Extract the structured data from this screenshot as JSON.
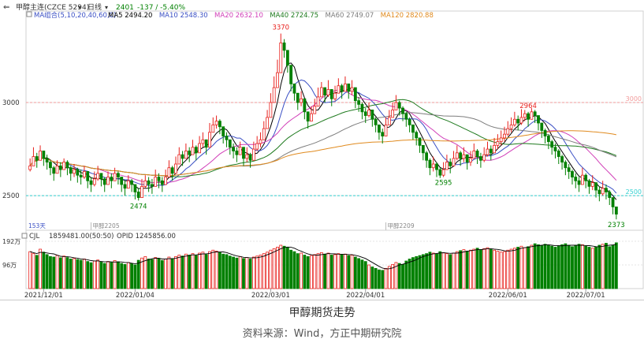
{
  "toolbar": {
    "symbol": "甲醇主连(CZCE 5294)",
    "period": "日线",
    "last": "2401",
    "change": "-137 / -5.40%",
    "icons": [
      "back-arrow-icon",
      "dropdown-icon",
      "period-dropdown-icon"
    ]
  },
  "ma_legend": {
    "group": "MA组合(5,10,20,40,60,0)",
    "items": [
      {
        "label": "MA5 2494.20",
        "color": "#000000"
      },
      {
        "label": "MA10 2548.30",
        "color": "#3a4fc4"
      },
      {
        "label": "MA20 2632.10",
        "color": "#d13fb8"
      },
      {
        "label": "MA40 2724.75",
        "color": "#1e7a1e"
      },
      {
        "label": "MA60 2749.07",
        "color": "#7d7d7d"
      },
      {
        "label": "MA120 2820.88",
        "color": "#e08a1e"
      }
    ]
  },
  "volume_legend": {
    "name": "CJL",
    "values": "1859481.00(50:50)",
    "opid": "OPID 1245856.00"
  },
  "colors": {
    "up": "#e8201c",
    "down": "#008000",
    "ref_red": "#f29b9b",
    "ref_cyan": "#33d0d0",
    "grid": "#e6e6e6"
  },
  "caption": {
    "title": "甲醇期货走势",
    "source": "资料来源：Wind，方正中期研究院"
  },
  "chart_data": {
    "type": "candlestick",
    "title": "甲醇期货走势",
    "price_axis": {
      "ylim": [
        2340,
        3440
      ],
      "ticks": [
        {
          "value": 2500,
          "label": "2500"
        },
        {
          "value": 3000,
          "label": "3000"
        }
      ]
    },
    "ref_lines": [
      {
        "value": 3000,
        "label": "3000",
        "color": "#f29b9b"
      },
      {
        "value": 2500,
        "label": "2500",
        "color": "#33d0d0"
      }
    ],
    "annotations": [
      {
        "label": "3370",
        "index": 74,
        "kind": "high",
        "color": "#e8201c"
      },
      {
        "label": "2474",
        "index": 32,
        "kind": "low",
        "color": "#008000"
      },
      {
        "label": "2595",
        "index": 122,
        "kind": "low",
        "color": "#008000"
      },
      {
        "label": "2964",
        "index": 147,
        "kind": "high",
        "color": "#e8201c"
      },
      {
        "label": "2373",
        "index": 173,
        "kind": "low",
        "color": "#008000"
      }
    ],
    "contract_marks": [
      {
        "label": "153天",
        "index": 0
      },
      {
        "label": "甲醇2205",
        "index": 18
      },
      {
        "label": "甲醇2209",
        "index": 105
      }
    ],
    "date_labels": [
      {
        "label": "2021/12/01",
        "index": 4
      },
      {
        "label": "2022/01/04",
        "index": 31
      },
      {
        "label": "2022/03/01",
        "index": 71
      },
      {
        "label": "2022/04/01",
        "index": 99
      },
      {
        "label": "2022/06/01",
        "index": 141
      },
      {
        "label": "2022/07/01",
        "index": 164
      }
    ],
    "volume_axis": {
      "ylim": [
        0,
        1920000
      ],
      "ticks": [
        {
          "value": 1920000,
          "label": "192万"
        },
        {
          "value": 960000,
          "label": "96万"
        }
      ]
    },
    "closes": [
      2660,
      2710,
      2690,
      2740,
      2700,
      2680,
      2650,
      2620,
      2660,
      2640,
      2680,
      2650,
      2620,
      2640,
      2610,
      2600,
      2630,
      2580,
      2560,
      2590,
      2620,
      2590,
      2560,
      2600,
      2580,
      2620,
      2600,
      2560,
      2540,
      2580,
      2560,
      2520,
      2490,
      2550,
      2580,
      2560,
      2550,
      2600,
      2580,
      2560,
      2600,
      2650,
      2620,
      2670,
      2720,
      2700,
      2740,
      2720,
      2760,
      2730,
      2780,
      2800,
      2760,
      2840,
      2880,
      2900,
      2870,
      2820,
      2800,
      2760,
      2740,
      2720,
      2760,
      2700,
      2720,
      2690,
      2750,
      2780,
      2800,
      2860,
      2920,
      3000,
      3080,
      3160,
      3320,
      3280,
      3200,
      3100,
      3050,
      3000,
      3020,
      2950,
      2900,
      2940,
      2980,
      3030,
      3080,
      3040,
      3070,
      3020,
      3050,
      3090,
      3060,
      3100,
      3060,
      3080,
      3010,
      2990,
      2950,
      2930,
      2960,
      2910,
      2880,
      2840,
      2820,
      2880,
      2920,
      2960,
      3000,
      2970,
      2940,
      2910,
      2880,
      2840,
      2810,
      2770,
      2730,
      2690,
      2650,
      2670,
      2640,
      2610,
      2640,
      2680,
      2660,
      2700,
      2730,
      2700,
      2720,
      2680,
      2700,
      2740,
      2710,
      2690,
      2720,
      2750,
      2730,
      2770,
      2790,
      2810,
      2830,
      2860,
      2880,
      2910,
      2890,
      2920,
      2940,
      2910,
      2950,
      2930,
      2890,
      2850,
      2820,
      2790,
      2760,
      2740,
      2710,
      2680,
      2650,
      2630,
      2600,
      2580,
      2560,
      2610,
      2580,
      2550,
      2570,
      2530,
      2510,
      2540,
      2520,
      2490,
      2440,
      2401
    ],
    "highs": [
      2700,
      2760,
      2730,
      2770,
      2740,
      2720,
      2690,
      2660,
      2690,
      2680,
      2700,
      2690,
      2660,
      2670,
      2650,
      2640,
      2660,
      2620,
      2600,
      2630,
      2660,
      2620,
      2600,
      2630,
      2620,
      2650,
      2630,
      2600,
      2580,
      2610,
      2590,
      2560,
      2540,
      2590,
      2610,
      2600,
      2590,
      2640,
      2620,
      2600,
      2640,
      2690,
      2660,
      2710,
      2760,
      2740,
      2780,
      2760,
      2800,
      2770,
      2820,
      2840,
      2800,
      2890,
      2920,
      2930,
      2910,
      2860,
      2840,
      2800,
      2780,
      2760,
      2790,
      2740,
      2760,
      2730,
      2790,
      2820,
      2840,
      2900,
      2960,
      3050,
      3140,
      3230,
      3370,
      3340,
      3270,
      3150,
      3100,
      3050,
      3060,
      3000,
      2950,
      2980,
      3020,
      3080,
      3110,
      3080,
      3120,
      3060,
      3090,
      3130,
      3100,
      3140,
      3100,
      3120,
      3060,
      3030,
      3000,
      2970,
      3000,
      2960,
      2920,
      2880,
      2860,
      2920,
      2960,
      3000,
      3040,
      3010,
      2980,
      2950,
      2920,
      2880,
      2850,
      2810,
      2770,
      2740,
      2700,
      2710,
      2680,
      2650,
      2680,
      2720,
      2700,
      2740,
      2770,
      2740,
      2760,
      2720,
      2740,
      2780,
      2750,
      2730,
      2760,
      2790,
      2770,
      2810,
      2830,
      2850,
      2870,
      2900,
      2920,
      2950,
      2930,
      2964,
      2960,
      2950,
      2970,
      2960,
      2930,
      2890,
      2860,
      2830,
      2800,
      2780,
      2750,
      2720,
      2690,
      2670,
      2640,
      2620,
      2600,
      2650,
      2620,
      2590,
      2610,
      2570,
      2550,
      2580,
      2560,
      2530,
      2490,
      2440
    ],
    "lows": [
      2630,
      2670,
      2650,
      2700,
      2660,
      2640,
      2610,
      2580,
      2620,
      2600,
      2640,
      2610,
      2580,
      2600,
      2570,
      2560,
      2590,
      2540,
      2520,
      2550,
      2580,
      2550,
      2520,
      2560,
      2540,
      2580,
      2560,
      2520,
      2500,
      2540,
      2520,
      2480,
      2474,
      2510,
      2540,
      2520,
      2510,
      2560,
      2540,
      2520,
      2560,
      2610,
      2580,
      2630,
      2680,
      2660,
      2700,
      2680,
      2720,
      2690,
      2740,
      2760,
      2720,
      2800,
      2840,
      2860,
      2830,
      2780,
      2760,
      2720,
      2700,
      2680,
      2720,
      2660,
      2680,
      2650,
      2710,
      2740,
      2760,
      2820,
      2880,
      2960,
      3040,
      3120,
      3280,
      3240,
      3160,
      3060,
      3010,
      2960,
      2980,
      2910,
      2860,
      2900,
      2940,
      2990,
      3040,
      3000,
      3030,
      2980,
      3010,
      3050,
      3020,
      3060,
      3020,
      3040,
      2970,
      2950,
      2910,
      2890,
      2920,
      2870,
      2840,
      2800,
      2780,
      2840,
      2880,
      2920,
      2960,
      2930,
      2900,
      2870,
      2840,
      2800,
      2770,
      2730,
      2690,
      2650,
      2610,
      2630,
      2600,
      2595,
      2600,
      2640,
      2620,
      2660,
      2690,
      2660,
      2680,
      2640,
      2660,
      2700,
      2670,
      2650,
      2680,
      2710,
      2690,
      2730,
      2750,
      2770,
      2790,
      2820,
      2840,
      2870,
      2850,
      2880,
      2900,
      2870,
      2910,
      2890,
      2850,
      2810,
      2780,
      2750,
      2720,
      2700,
      2670,
      2640,
      2610,
      2590,
      2560,
      2540,
      2520,
      2570,
      2540,
      2510,
      2530,
      2490,
      2470,
      2500,
      2480,
      2450,
      2400,
      2373
    ],
    "volumes": [
      1500000,
      1420000,
      1350000,
      1600000,
      1480000,
      1380000,
      1300000,
      1280000,
      1350000,
      1250000,
      1320000,
      1260000,
      1200000,
      1220000,
      1180000,
      1150000,
      1200000,
      1100000,
      1050000,
      1120000,
      1160000,
      1080000,
      1020000,
      1100000,
      1060000,
      1140000,
      1090000,
      1020000,
      980000,
      1060000,
      1010000,
      960000,
      1150000,
      1240000,
      1300000,
      1200000,
      1180000,
      1260000,
      1220000,
      1140000,
      1200000,
      1280000,
      1220000,
      1300000,
      1360000,
      1320000,
      1400000,
      1360000,
      1420000,
      1340000,
      1440000,
      1480000,
      1380000,
      1500000,
      1560000,
      1520000,
      1460000,
      1400000,
      1380000,
      1320000,
      1280000,
      1240000,
      1300000,
      1220000,
      1260000,
      1200000,
      1280000,
      1320000,
      1360000,
      1420000,
      1480000,
      1560000,
      1620000,
      1680000,
      1760000,
      1720000,
      1660000,
      1560000,
      1500000,
      1420000,
      1440000,
      1360000,
      1300000,
      1340000,
      1380000,
      1420000,
      1460000,
      1400000,
      1440000,
      1360000,
      1380000,
      1420000,
      1380000,
      1400000,
      1340000,
      1360000,
      1280000,
      1220000,
      1160000,
      1100000,
      960000,
      880000,
      820000,
      760000,
      740000,
      820000,
      900000,
      980000,
      1060000,
      1020000,
      980000,
      1120000,
      1200000,
      1260000,
      1300000,
      1340000,
      1380000,
      1420000,
      1480000,
      1440000,
      1400000,
      1500000,
      1460000,
      1420000,
      1380000,
      1440000,
      1500000,
      1540000,
      1580000,
      1520000,
      1560000,
      1600000,
      1640000,
      1580000,
      1620000,
      1660000,
      1600000,
      1560000,
      1520000,
      1480000,
      1500000,
      1560000,
      1600000,
      1640000,
      1680000,
      1720000,
      1660000,
      1700000,
      1760000,
      1820000,
      1780000,
      1740000,
      1800000,
      1760000,
      1720000,
      1680000,
      1740000,
      1780000,
      1820000,
      1760000,
      1700000,
      1740000,
      1800000,
      1780000,
      1720000,
      1680000,
      1640000,
      1700000,
      1760000,
      1800000,
      1840000,
      1700000,
      1760000,
      1859481
    ]
  }
}
